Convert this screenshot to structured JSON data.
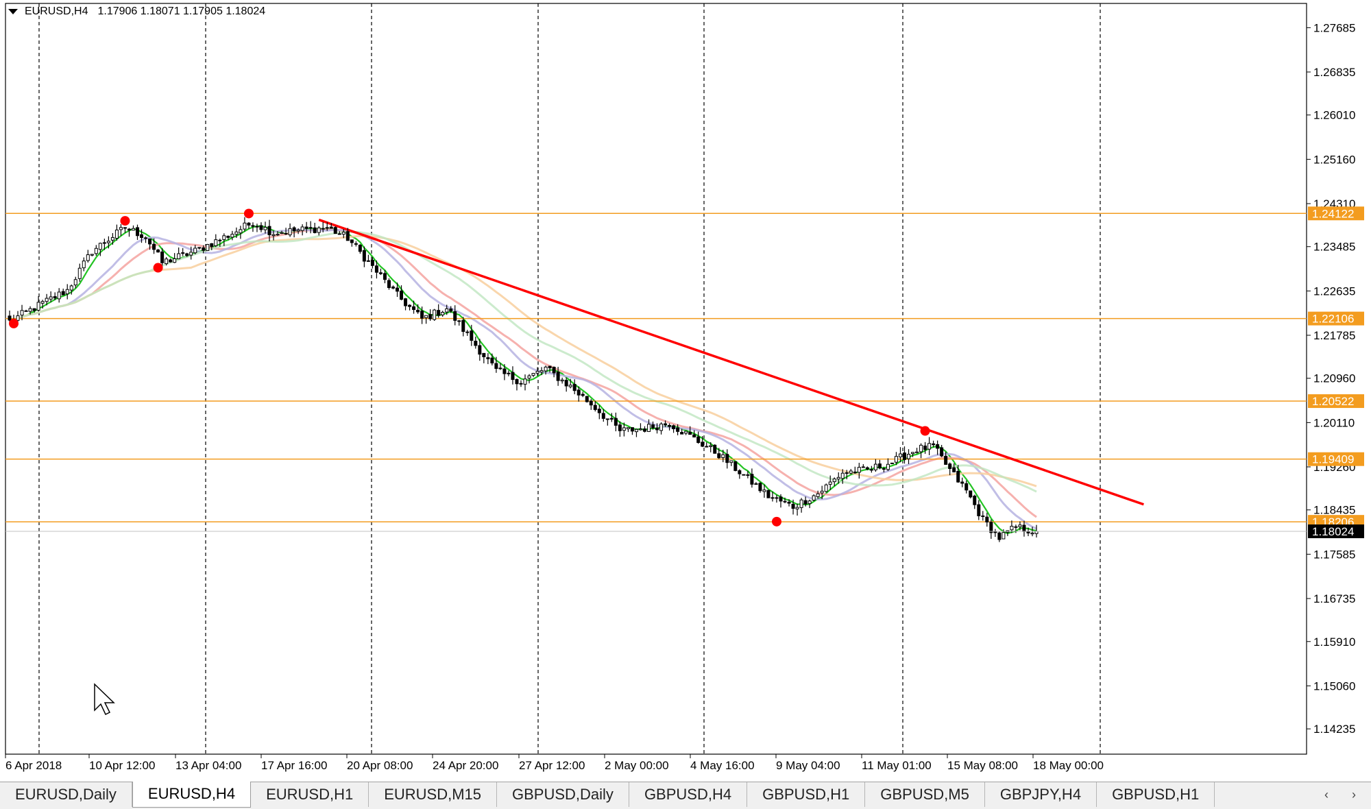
{
  "header": {
    "symbol": "EURUSD,H4",
    "ohlc": "1.17906 1.18071 1.17905 1.18024"
  },
  "tabs": [
    {
      "label": "EURUSD,Daily",
      "active": false
    },
    {
      "label": "EURUSD,H4",
      "active": true
    },
    {
      "label": "EURUSD,H1",
      "active": false
    },
    {
      "label": "EURUSD,M15",
      "active": false
    },
    {
      "label": "GBPUSD,Daily",
      "active": false
    },
    {
      "label": "GBPUSD,H4",
      "active": false
    },
    {
      "label": "GBPUSD,H1",
      "active": false
    },
    {
      "label": "GBPUSD,M5",
      "active": false
    },
    {
      "label": "GBPJPY,H4",
      "active": false
    },
    {
      "label": "GBPUSD,H1",
      "active": false
    }
  ],
  "tab_nav": {
    "left": "‹",
    "right": "›"
  },
  "chart_data": {
    "type": "line",
    "title": "",
    "xlabel": "",
    "ylabel": "",
    "ylim": [
      1.1375,
      1.2815
    ],
    "y_ticks": [
      "1.27685",
      "1.26835",
      "1.26010",
      "1.25160",
      "1.24310",
      "1.23485",
      "1.22635",
      "1.21785",
      "1.20960",
      "1.20110",
      "1.19260",
      "1.18435",
      "1.17585",
      "1.16735",
      "1.15910",
      "1.15060",
      "1.14235"
    ],
    "x_ticks": [
      "6 Apr 2018",
      "10 Apr 12:00",
      "13 Apr 04:00",
      "17 Apr 16:00",
      "20 Apr 08:00",
      "24 Apr 20:00",
      "27 Apr 12:00",
      "2 May 00:00",
      "4 May 16:00",
      "9 May 04:00",
      "11 May 01:00",
      "15 May 08:00",
      "18 May 00:00"
    ],
    "n_bars": 250,
    "last_price": "1.18024",
    "last_price_color": "#000000",
    "horizontal_levels": [
      {
        "price": 1.24122,
        "label": "1.24122"
      },
      {
        "price": 1.22106,
        "label": "1.22106"
      },
      {
        "price": 1.20522,
        "label": "1.20522"
      },
      {
        "price": 1.19409,
        "label": "1.19409"
      },
      {
        "price": 1.18206,
        "label": "1.18206"
      }
    ],
    "level_color": "#f39c1f",
    "trendline": {
      "from": [
        75,
        1.24
      ],
      "to": [
        275,
        1.1854
      ],
      "color": "#ff0000"
    },
    "swing_points": [
      {
        "bar": 1,
        "price": 1.2201
      },
      {
        "bar": 28,
        "price": 1.2398
      },
      {
        "bar": 36,
        "price": 1.2308
      },
      {
        "bar": 58,
        "price": 1.2412
      },
      {
        "bar": 186,
        "price": 1.1821
      },
      {
        "bar": 222,
        "price": 1.1995
      }
    ],
    "swing_color": "#ff0000",
    "price_anchors": [
      [
        0,
        1.2205
      ],
      [
        8,
        1.224
      ],
      [
        14,
        1.2265
      ],
      [
        20,
        1.234
      ],
      [
        28,
        1.2385
      ],
      [
        33,
        1.2368
      ],
      [
        37,
        1.2318
      ],
      [
        45,
        1.234
      ],
      [
        53,
        1.237
      ],
      [
        59,
        1.2395
      ],
      [
        64,
        1.2375
      ],
      [
        70,
        1.238
      ],
      [
        77,
        1.2385
      ],
      [
        82,
        1.2365
      ],
      [
        88,
        1.231
      ],
      [
        94,
        1.2255
      ],
      [
        100,
        1.221
      ],
      [
        106,
        1.223
      ],
      [
        112,
        1.217
      ],
      [
        118,
        1.211
      ],
      [
        124,
        1.209
      ],
      [
        130,
        1.2115
      ],
      [
        136,
        1.208
      ],
      [
        142,
        1.204
      ],
      [
        148,
        1.1995
      ],
      [
        154,
        1.2
      ],
      [
        160,
        1.201
      ],
      [
        166,
        1.198
      ],
      [
        172,
        1.195
      ],
      [
        178,
        1.191
      ],
      [
        184,
        1.187
      ],
      [
        190,
        1.185
      ],
      [
        196,
        1.1875
      ],
      [
        202,
        1.1915
      ],
      [
        208,
        1.192
      ],
      [
        214,
        1.1935
      ],
      [
        220,
        1.196
      ],
      [
        224,
        1.1965
      ],
      [
        228,
        1.192
      ],
      [
        232,
        1.188
      ],
      [
        236,
        1.1825
      ],
      [
        240,
        1.179
      ],
      [
        244,
        1.181
      ],
      [
        249,
        1.1802
      ]
    ],
    "moving_averages": [
      {
        "period": 5,
        "color": "#22c322",
        "width": 2.2,
        "alpha": 1
      },
      {
        "period": 21,
        "color": "#f4a3a0",
        "width": 3,
        "alpha": 0.85
      },
      {
        "period": 15,
        "color": "#b6b3e2",
        "width": 3,
        "alpha": 0.85
      },
      {
        "period": 45,
        "color": "#f8cf9e",
        "width": 3,
        "alpha": 0.85
      },
      {
        "period": 35,
        "color": "#bfe6c0",
        "width": 3,
        "alpha": 0.8
      }
    ]
  }
}
